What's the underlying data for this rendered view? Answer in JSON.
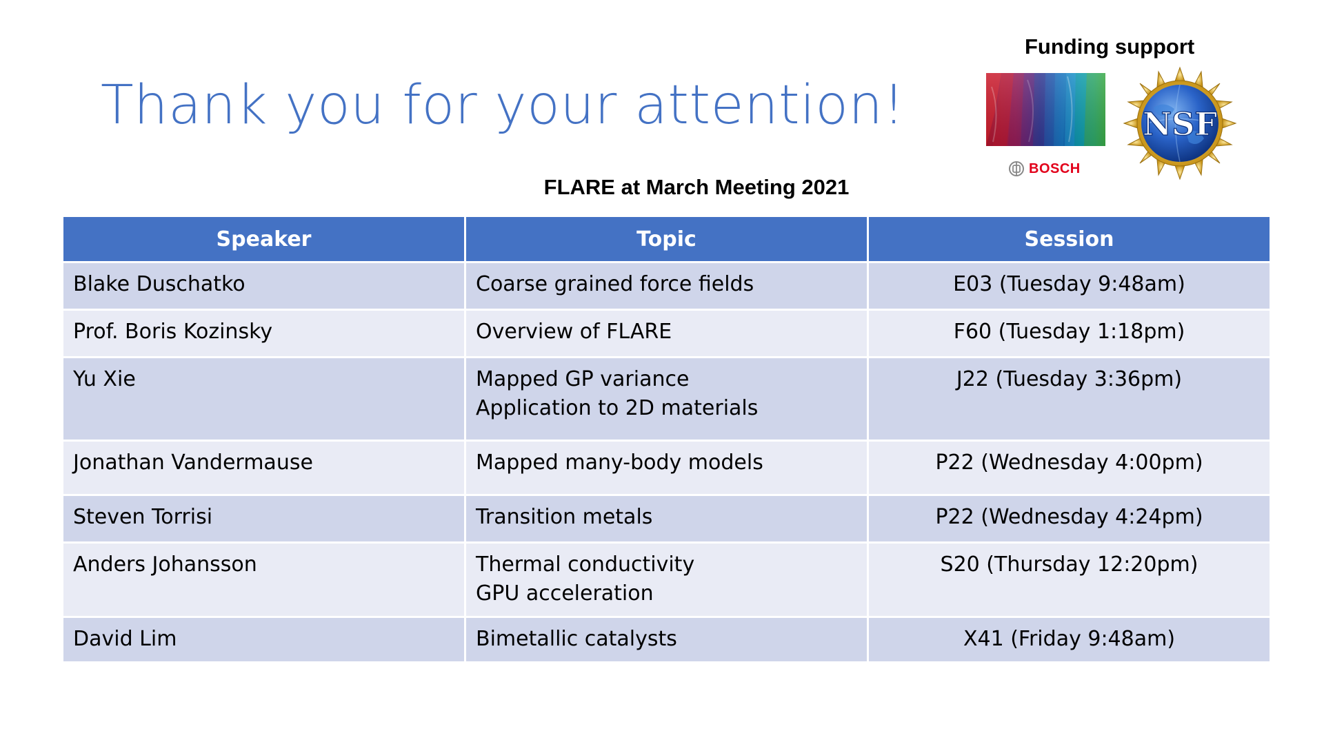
{
  "slide": {
    "title": "Thank you for your attention!"
  },
  "funding": {
    "label": "Funding support",
    "bosch_text": "BOSCH",
    "nsf_text": "NSF"
  },
  "table": {
    "caption": "FLARE at March Meeting 2021",
    "headers": [
      "Speaker",
      "Topic",
      "Session"
    ],
    "rows": [
      {
        "speaker": "Blake Duschatko",
        "topic": [
          "Coarse grained force fields"
        ],
        "session": "E03 (Tuesday 9:48am)"
      },
      {
        "speaker": "Prof. Boris Kozinsky",
        "topic": [
          "Overview of FLARE"
        ],
        "session": "F60 (Tuesday 1:18pm)"
      },
      {
        "speaker": "Yu Xie",
        "topic": [
          "Mapped GP variance",
          "Application to 2D materials"
        ],
        "session": "J22 (Tuesday 3:36pm)"
      },
      {
        "speaker": "Jonathan Vandermause",
        "topic": [
          "Mapped many-body models"
        ],
        "session": "P22 (Wednesday 4:00pm)"
      },
      {
        "speaker": "Steven Torrisi",
        "topic": [
          "Transition metals"
        ],
        "session": "P22 (Wednesday 4:24pm)"
      },
      {
        "speaker": "Anders Johansson",
        "topic": [
          "Thermal conductivity",
          "GPU acceleration"
        ],
        "session": "S20 (Thursday 12:20pm)"
      },
      {
        "speaker": "David Lim",
        "topic": [
          "Bimetallic catalysts"
        ],
        "session": "X41 (Friday 9:48am)"
      }
    ]
  },
  "colors": {
    "title": "#4472c4",
    "header_fill": "#4472c4",
    "row_odd": "#cfd5ea",
    "row_even": "#e9ebf5",
    "bosch_red": "#e2001a"
  }
}
